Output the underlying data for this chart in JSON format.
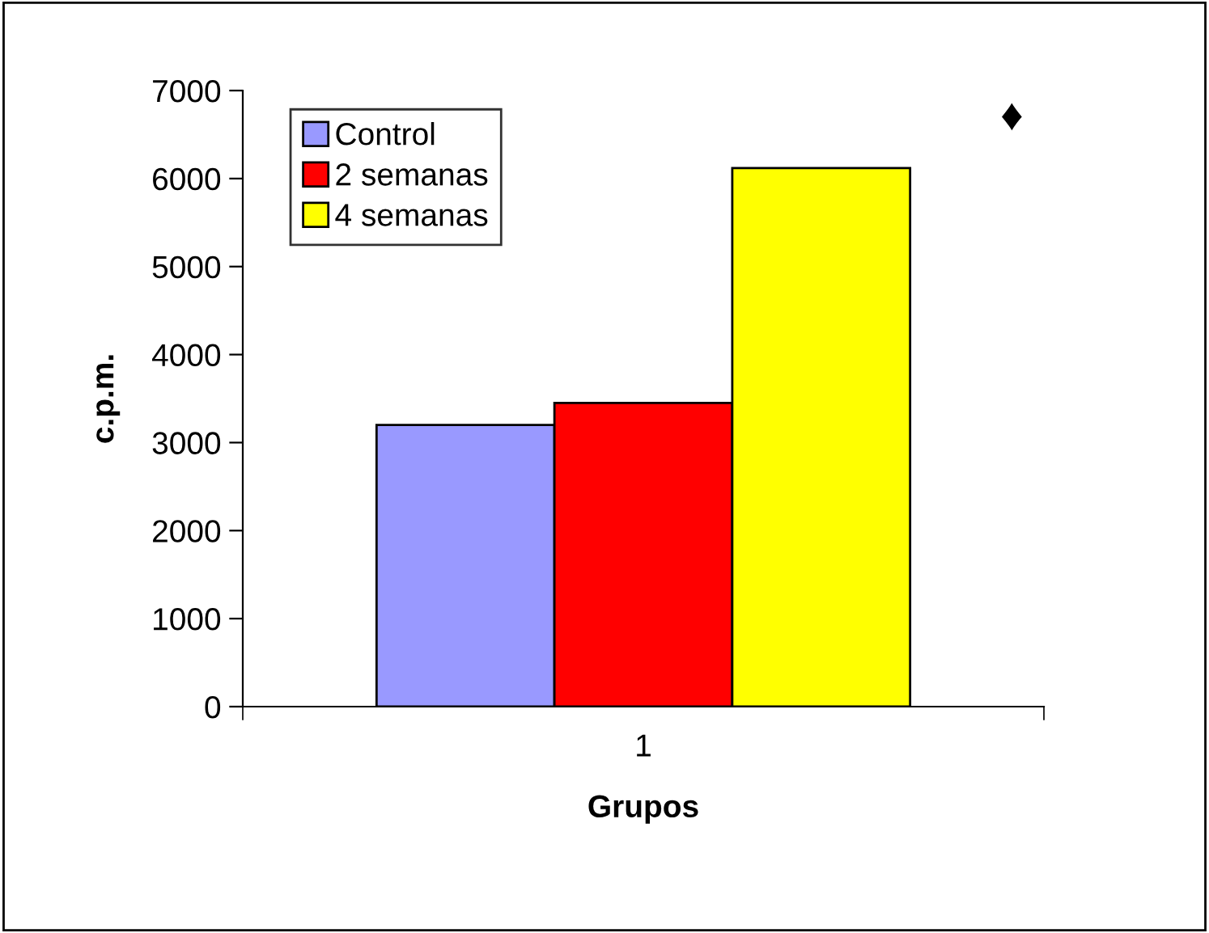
{
  "chart_data": {
    "type": "bar",
    "xlabel": "Grupos",
    "ylabel": "c.p.m.",
    "categories": [
      "1"
    ],
    "series": [
      {
        "name": "Control",
        "color": "#9999ff",
        "values": [
          3200
        ]
      },
      {
        "name": "2 semanas",
        "color": "#ff0000",
        "values": [
          3450
        ]
      },
      {
        "name": "4 semanas",
        "color": "#ffff00",
        "values": [
          6120
        ]
      }
    ],
    "ylim": [
      0,
      7000
    ],
    "yticks": [
      0,
      1000,
      2000,
      3000,
      4000,
      5000,
      6000,
      7000
    ],
    "annotations": [
      "♦"
    ],
    "grid": false,
    "legend": "top left"
  }
}
